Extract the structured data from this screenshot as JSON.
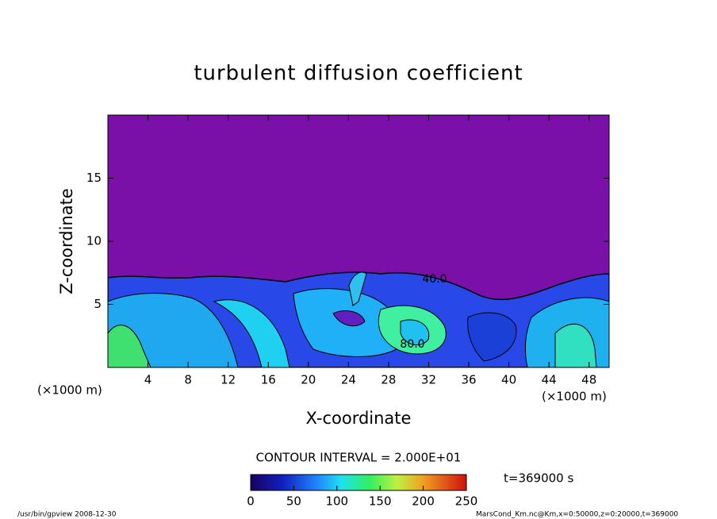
{
  "chart_data": {
    "type": "contour",
    "title": "turbulent diffusion coefficient",
    "xlabel": "X-coordinate",
    "ylabel": "Z-coordinate",
    "x_unit_labels": [
      "(×1000 m)",
      "(×1000 m)"
    ],
    "xlim": [
      0,
      50
    ],
    "ylim": [
      0,
      20
    ],
    "xticks": [
      4,
      8,
      12,
      16,
      20,
      24,
      28,
      32,
      36,
      40,
      44,
      48
    ],
    "yticks": [
      5,
      10,
      15
    ],
    "contour_interval": "CONTOUR INTERVAL = 2.000E+01",
    "contour_labels": [
      {
        "value": 40,
        "label": "40.0"
      },
      {
        "value": 80,
        "label": "80.0"
      }
    ],
    "colorbar_lim": [
      0,
      250
    ],
    "colorbar_ticks": [
      0,
      50,
      100,
      150,
      200,
      250
    ],
    "time_label": "t=369000 s",
    "footer_left": "/usr/bin/gpview   2008-12-30",
    "footer_right": "MarsCond_Km.nc@Km,x=0:50000,z=0:20000,t=369000"
  }
}
